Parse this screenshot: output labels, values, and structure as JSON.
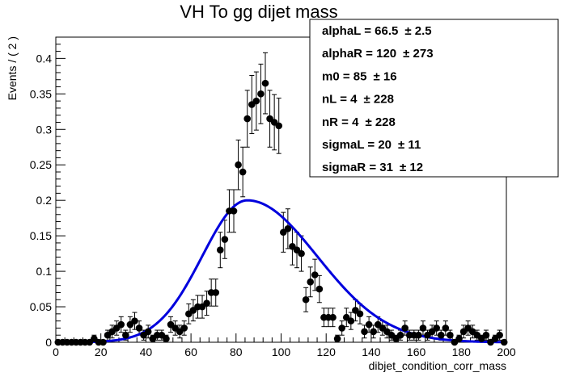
{
  "chart_data": {
    "type": "scatter",
    "title": "VH To gg dijet mass",
    "xlabel": "dibjet_condition_corr_mass",
    "ylabel": "Events / ( 2 )",
    "xlim": [
      0,
      200
    ],
    "ylim": [
      0,
      0.43
    ],
    "x_ticks": [
      "0",
      "20",
      "40",
      "60",
      "80",
      "100",
      "120",
      "140",
      "160",
      "180",
      "200"
    ],
    "y_ticks": [
      "0",
      "0.05",
      "0.1",
      "0.15",
      "0.2",
      "0.25",
      "0.3",
      "0.35",
      "0.4"
    ],
    "grid": false,
    "legend": "top-right",
    "colors": {
      "data": "#000000",
      "fit": "#0000dd"
    },
    "series": [
      {
        "type": "scatter-errorbar",
        "x": [
          1,
          3,
          5,
          7,
          9,
          11,
          13,
          15,
          17,
          19,
          21,
          23,
          25,
          27,
          29,
          31,
          33,
          35,
          37,
          39,
          41,
          43,
          45,
          47,
          49,
          51,
          53,
          55,
          57,
          59,
          61,
          63,
          65,
          67,
          69,
          71,
          73,
          75,
          77,
          79,
          81,
          83,
          85,
          87,
          89,
          91,
          93,
          95,
          97,
          99,
          101,
          103,
          105,
          107,
          109,
          111,
          113,
          115,
          117,
          119,
          121,
          123,
          125,
          127,
          129,
          131,
          133,
          135,
          137,
          139,
          141,
          143,
          145,
          147,
          149,
          151,
          153,
          155,
          157,
          159,
          161,
          163,
          165,
          167,
          169,
          171,
          173,
          175,
          177,
          179,
          181,
          183,
          185,
          187,
          189,
          191,
          193,
          195,
          197,
          199
        ],
        "y": [
          0,
          0,
          0,
          0,
          0,
          0,
          0,
          0,
          0.005,
          0,
          0,
          0.01,
          0.015,
          0.02,
          0.025,
          0.01,
          0.025,
          0.03,
          0.02,
          0.01,
          0.015,
          0.005,
          0.01,
          0.01,
          0.005,
          0.025,
          0.02,
          0.015,
          0.02,
          0.04,
          0.045,
          0.05,
          0.05,
          0.055,
          0.07,
          0.07,
          0.13,
          0.145,
          0.185,
          0.185,
          0.25,
          0.24,
          0.315,
          0.335,
          0.34,
          0.35,
          0.365,
          0.315,
          0.31,
          0.305,
          0.155,
          0.16,
          0.135,
          0.13,
          0.125,
          0.06,
          0.085,
          0.095,
          0.075,
          0.035,
          0.035,
          0.035,
          0.005,
          0.02,
          0.035,
          0.03,
          0.045,
          0.04,
          0.015,
          0.025,
          0.015,
          0.025,
          0.02,
          0.015,
          0.01,
          0.005,
          0.01,
          0.02,
          0.01,
          0.01,
          0.01,
          0.02,
          0.01,
          0.015,
          0.02,
          0.01,
          0.02,
          0.01,
          0,
          0.005,
          0.015,
          0.02,
          0.015,
          0.01,
          0.005,
          0.01,
          0,
          0.005,
          0.01,
          0
        ],
        "err": [
          0,
          0,
          0,
          0,
          0,
          0,
          0,
          0,
          0.005,
          0,
          0,
          0.007,
          0.009,
          0.01,
          0.011,
          0.007,
          0.011,
          0.012,
          0.01,
          0.007,
          0.009,
          0.005,
          0.007,
          0.007,
          0.005,
          0.011,
          0.01,
          0.009,
          0.01,
          0.014,
          0.015,
          0.016,
          0.016,
          0.017,
          0.019,
          0.019,
          0.025,
          0.027,
          0.03,
          0.03,
          0.035,
          0.035,
          0.04,
          0.041,
          0.041,
          0.042,
          0.043,
          0.04,
          0.039,
          0.039,
          0.028,
          0.028,
          0.026,
          0.025,
          0.025,
          0.017,
          0.021,
          0.022,
          0.019,
          0.013,
          0.013,
          0.013,
          0.005,
          0.01,
          0.013,
          0.012,
          0.015,
          0.014,
          0.009,
          0.011,
          0.009,
          0.011,
          0.01,
          0.009,
          0.007,
          0.005,
          0.007,
          0.01,
          0.007,
          0.007,
          0.007,
          0.01,
          0.007,
          0.009,
          0.01,
          0.007,
          0.01,
          0.007,
          0,
          0.005,
          0.009,
          0.01,
          0.009,
          0.007,
          0.005,
          0.007,
          0,
          0.005,
          0.007,
          0
        ]
      },
      {
        "type": "line",
        "function": "double-sided-crystal-ball",
        "peak": 0.2,
        "params": {
          "alphaL": 66.5,
          "alphaR": 120,
          "m0": 85,
          "nL": 4,
          "nR": 4,
          "sigmaL": 20,
          "sigmaR": 31
        }
      }
    ]
  },
  "stats_box": {
    "placement": "top-right",
    "entries": [
      {
        "label": "alphaL = ",
        "value": "66.5",
        "err": "± 2.5"
      },
      {
        "label": "alphaR = ",
        "value": "120",
        "err": "± 273"
      },
      {
        "label": "m0 = ",
        "value": "85",
        "err": "± 16"
      },
      {
        "label": "nL = ",
        "value": "4",
        "err": "± 228"
      },
      {
        "label": "nR = ",
        "value": "4",
        "err": "± 228"
      },
      {
        "label": "sigmaL = ",
        "value": "20",
        "err": "± 11"
      },
      {
        "label": "sigmaR = ",
        "value": "31",
        "err": "± 12"
      }
    ]
  }
}
